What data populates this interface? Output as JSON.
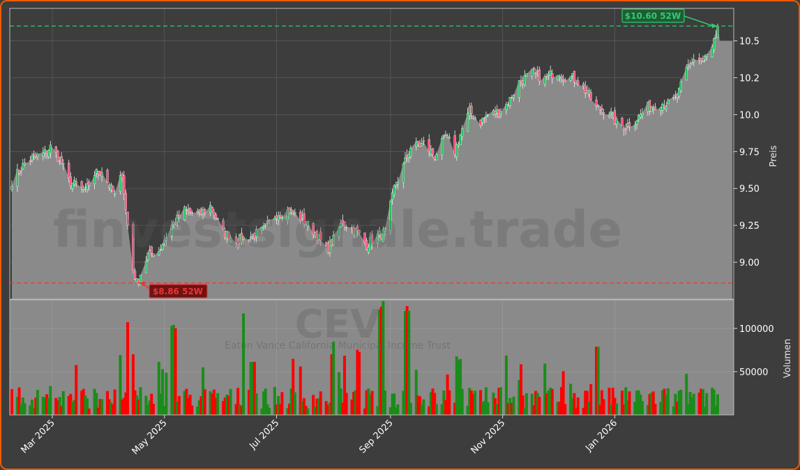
{
  "watermark": {
    "site": "finvestsignale.trade",
    "ticker": "CEV",
    "fund_name": "Eaton Vance California Municipal Income Trust"
  },
  "annotations": {
    "high_label": "$10.60 52W",
    "low_label": "$8.86 52W",
    "high_value": 10.6,
    "low_value": 8.86,
    "high_color": "#2ecc71",
    "low_color": "#ee3333"
  },
  "colors": {
    "up": "#22c05a",
    "down": "#ff4d7a",
    "vol_up": "#1a8c1a",
    "vol_down": "#ff0000",
    "area": "#8a8a8a",
    "background": "#3d3d3d",
    "border": "#f05a00"
  },
  "chart_data": {
    "type": "candlestick",
    "price_axis": {
      "label": "Preis",
      "ticks": [
        9.0,
        9.25,
        9.5,
        9.75,
        10.0,
        10.25,
        10.5
      ],
      "tick_labels": [
        "9.00",
        "9.25",
        "9.50",
        "9.75",
        "10.0",
        "10.2",
        "10.5"
      ],
      "range": [
        8.75,
        10.72
      ]
    },
    "volume_axis": {
      "label": "Volumen",
      "ticks": [
        50000,
        100000
      ],
      "tick_labels": [
        "50000",
        "100000"
      ],
      "range": [
        0,
        133000
      ]
    },
    "x_axis": {
      "tick_labels": [
        "Mar 2025",
        "May 2025",
        "Jul 2025",
        "Sep 2025",
        "Nov 2025",
        "Jan 2026"
      ],
      "tick_dates": [
        "2025-03-01",
        "2025-05-01",
        "2025-07-01",
        "2025-09-01",
        "2025-11-01",
        "2026-01-01"
      ],
      "range": [
        "2025-02-07",
        "2026-02-26"
      ]
    },
    "price_keypoints": [
      [
        "2025-02-07",
        9.55
      ],
      [
        "2025-02-10",
        9.6
      ],
      [
        "2025-02-14",
        9.67
      ],
      [
        "2025-02-19",
        9.71
      ],
      [
        "2025-02-25",
        9.74
      ],
      [
        "2025-02-28",
        9.78
      ],
      [
        "2025-03-05",
        9.7
      ],
      [
        "2025-03-10",
        9.55
      ],
      [
        "2025-03-14",
        9.52
      ],
      [
        "2025-03-19",
        9.48
      ],
      [
        "2025-03-24",
        9.6
      ],
      [
        "2025-03-28",
        9.62
      ],
      [
        "2025-04-01",
        9.52
      ],
      [
        "2025-04-04",
        9.45
      ],
      [
        "2025-04-08",
        9.6
      ],
      [
        "2025-04-10",
        9.35
      ],
      [
        "2025-04-14",
        8.95
      ],
      [
        "2025-04-16",
        8.86
      ],
      [
        "2025-04-22",
        9.05
      ],
      [
        "2025-04-28",
        9.08
      ],
      [
        "2025-05-05",
        9.25
      ],
      [
        "2025-05-12",
        9.35
      ],
      [
        "2025-05-20",
        9.32
      ],
      [
        "2025-05-26",
        9.38
      ],
      [
        "2025-06-02",
        9.2
      ],
      [
        "2025-06-10",
        9.15
      ],
      [
        "2025-06-18",
        9.18
      ],
      [
        "2025-06-24",
        9.22
      ],
      [
        "2025-07-01",
        9.33
      ],
      [
        "2025-07-08",
        9.35
      ],
      [
        "2025-07-14",
        9.3
      ],
      [
        "2025-07-22",
        9.2
      ],
      [
        "2025-07-28",
        9.08
      ],
      [
        "2025-08-01",
        9.15
      ],
      [
        "2025-08-06",
        9.28
      ],
      [
        "2025-08-14",
        9.2
      ],
      [
        "2025-08-19",
        9.12
      ],
      [
        "2025-08-25",
        9.18
      ],
      [
        "2025-08-29",
        9.2
      ],
      [
        "2025-09-03",
        9.5
      ],
      [
        "2025-09-08",
        9.65
      ],
      [
        "2025-09-12",
        9.78
      ],
      [
        "2025-09-19",
        9.8
      ],
      [
        "2025-09-25",
        9.72
      ],
      [
        "2025-10-01",
        9.85
      ],
      [
        "2025-10-06",
        9.75
      ],
      [
        "2025-10-10",
        9.9
      ],
      [
        "2025-10-14",
        10.02
      ],
      [
        "2025-10-20",
        9.95
      ],
      [
        "2025-10-24",
        10.0
      ],
      [
        "2025-10-30",
        10.02
      ],
      [
        "2025-11-04",
        10.08
      ],
      [
        "2025-11-10",
        10.22
      ],
      [
        "2025-11-17",
        10.28
      ],
      [
        "2025-11-24",
        10.24
      ],
      [
        "2025-11-30",
        10.3
      ],
      [
        "2025-12-05",
        10.26
      ],
      [
        "2025-12-11",
        10.24
      ],
      [
        "2025-12-17",
        10.15
      ],
      [
        "2025-12-22",
        10.05
      ],
      [
        "2025-12-29",
        10.02
      ],
      [
        "2026-01-02",
        9.94
      ],
      [
        "2026-01-06",
        9.92
      ],
      [
        "2026-01-12",
        9.96
      ],
      [
        "2026-01-19",
        10.05
      ],
      [
        "2026-01-26",
        10.08
      ],
      [
        "2026-01-30",
        10.07
      ],
      [
        "2026-02-04",
        10.12
      ],
      [
        "2026-02-09",
        10.3
      ],
      [
        "2026-02-13",
        10.38
      ],
      [
        "2026-02-18",
        10.36
      ],
      [
        "2026-02-23",
        10.45
      ],
      [
        "2026-02-26",
        10.6
      ]
    ],
    "volume_spikes": [
      [
        "2025-04-12",
        112000
      ],
      [
        "2025-05-06",
        108000
      ],
      [
        "2025-06-14",
        130000
      ],
      [
        "2025-08-02",
        88000
      ],
      [
        "2025-08-27",
        132000
      ],
      [
        "2025-09-10",
        130000
      ],
      [
        "2025-10-08",
        70000
      ],
      [
        "2025-11-02",
        75000
      ],
      [
        "2025-12-22",
        82000
      ],
      [
        "2025-08-15",
        80000
      ],
      [
        "2025-04-06",
        70000
      ],
      [
        "2025-06-18",
        65000
      ]
    ],
    "volume_baseline": 18000,
    "last_close_area": 10.5
  }
}
